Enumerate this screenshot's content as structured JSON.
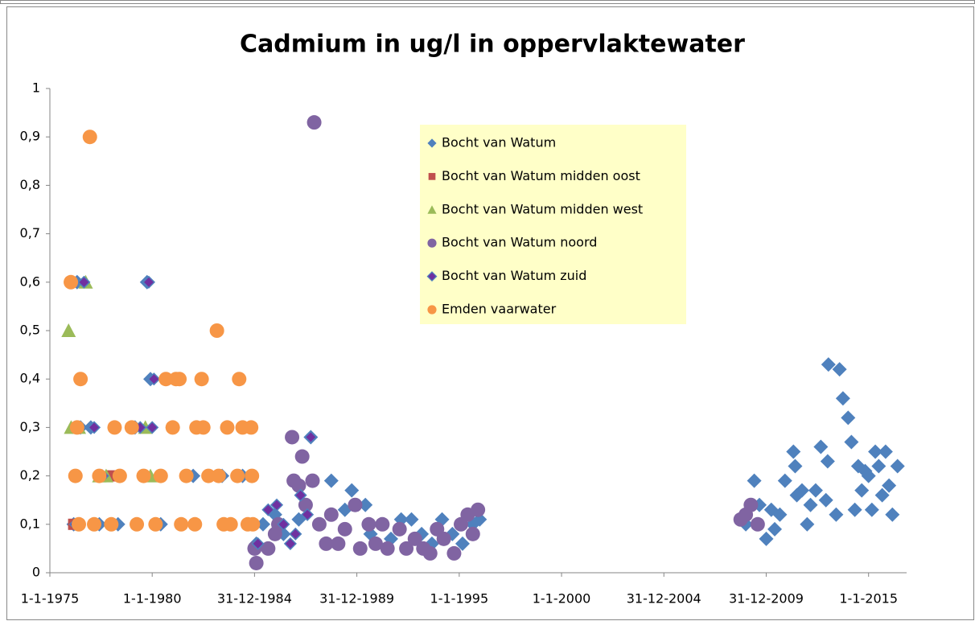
{
  "chart_data": {
    "type": "scatter",
    "title": "Cadmium in ug/l in oppervlaktewater",
    "xlim": [
      "1975-01-01",
      "2016-11-10"
    ],
    "xticks": [
      {
        "value": "1975-01-01",
        "label": "1-1-1975"
      },
      {
        "value": "1980-01-01",
        "label": "1-1-1980"
      },
      {
        "value": "1984-12-31",
        "label": "31-12-1984"
      },
      {
        "value": "1989-12-31",
        "label": "31-12-1989"
      },
      {
        "value": "1995-01-01",
        "label": "1-1-1995"
      },
      {
        "value": "2000-01-01",
        "label": "1-1-2000"
      },
      {
        "value": "2004-12-31",
        "label": "31-12-2004"
      },
      {
        "value": "2009-12-31",
        "label": "31-12-2009"
      },
      {
        "value": "2015-01-01",
        "label": "1-1-2015"
      }
    ],
    "ylim": [
      0,
      1
    ],
    "yticks": [
      0,
      {
        "value": 0.1,
        "label": "0,1"
      },
      {
        "value": 0.2,
        "label": "0,2"
      },
      {
        "value": 0.3,
        "label": "0,3"
      },
      {
        "value": 0.4,
        "label": "0,4"
      },
      {
        "value": 0.5,
        "label": "0,5"
      },
      {
        "value": 0.6,
        "label": "0,6"
      },
      {
        "value": 0.7,
        "label": "0,7"
      },
      {
        "value": 0.8,
        "label": "0,8"
      },
      {
        "value": 0.9,
        "label": "0,9"
      },
      1
    ],
    "grid": false,
    "legend": "upper center",
    "series": [
      {
        "name": "Bocht van Watum",
        "color": "#4f81bd",
        "marker": "diamond",
        "x": [
          "1976-03-01",
          "1976-05-01",
          "1976-07-01",
          "1977-01-01",
          "1977-06-01",
          "1978-05-01",
          "1979-03-01",
          "1979-10-01",
          "1979-12-01",
          "1980-06-01",
          "1981-01-01",
          "1982-01-01",
          "1983-06-01",
          "1984-06-01",
          "1985-02-01",
          "1985-06-01",
          "1986-01-01",
          "1986-06-01",
          "1987-03-01",
          "1987-10-01",
          "1988-10-01",
          "1989-06-01",
          "1989-10-01",
          "1990-06-01",
          "1990-09-01",
          "1991-03-01",
          "1991-09-01",
          "1992-03-01",
          "1992-09-01",
          "1993-03-01",
          "1993-09-01",
          "1994-03-01",
          "1994-09-01",
          "1995-03-01",
          "1995-09-01",
          "1996-01-01",
          "2009-01-01",
          "2009-06-01",
          "2009-09-01",
          "2010-01-01",
          "2010-04-01",
          "2010-06-01",
          "2010-09-01",
          "2010-12-01",
          "2011-05-01",
          "2011-06-01",
          "2011-07-01",
          "2011-10-01",
          "2012-01-01",
          "2012-03-01",
          "2012-06-01",
          "2012-09-01",
          "2012-12-01",
          "2013-01-01",
          "2013-01-15",
          "2013-06-01",
          "2013-08-01",
          "2013-10-01",
          "2014-01-01",
          "2014-03-01",
          "2014-05-01",
          "2014-07-01",
          "2014-09-01",
          "2014-11-01",
          "2015-01-01",
          "2015-03-01",
          "2015-05-01",
          "2015-07-01",
          "2015-09-01",
          "2015-11-01",
          "2016-01-01",
          "2016-03-01",
          "2016-06-01"
        ],
        "values": [
          0.1,
          0.6,
          0.3,
          0.3,
          0.1,
          0.1,
          0.3,
          0.6,
          0.4,
          0.1,
          0.3,
          0.2,
          0.2,
          0.2,
          0.06,
          0.1,
          0.12,
          0.08,
          0.11,
          0.28,
          0.19,
          0.13,
          0.17,
          0.14,
          0.08,
          0.1,
          0.07,
          0.11,
          0.11,
          0.08,
          0.06,
          0.11,
          0.08,
          0.06,
          0.1,
          0.11,
          0.1,
          0.19,
          0.14,
          0.07,
          0.13,
          0.09,
          0.12,
          0.19,
          0.25,
          0.22,
          0.16,
          0.17,
          0.1,
          0.14,
          0.17,
          0.26,
          0.15,
          0.23,
          0.43,
          0.12,
          0.42,
          0.36,
          0.32,
          0.27,
          0.13,
          0.22,
          0.17,
          0.21,
          0.2,
          0.13,
          0.25,
          0.22,
          0.16,
          0.25,
          0.18,
          0.12,
          0.22
        ]
      },
      {
        "name": "Bocht van Watum midden oost",
        "color": "#c0504d",
        "marker": "square",
        "x": [
          "1976-03-01",
          "1978-01-01"
        ],
        "values": [
          0.1,
          0.2
        ]
      },
      {
        "name": "Bocht van Watum midden west",
        "color": "#9bbb59",
        "marker": "triangle",
        "x": [
          "1975-12-01",
          "1976-01-15",
          "1976-06-01",
          "1976-10-01",
          "1977-06-01",
          "1977-10-01",
          "1979-09-01",
          "1979-12-01"
        ],
        "values": [
          0.5,
          0.3,
          0.3,
          0.6,
          0.2,
          0.2,
          0.3,
          0.2
        ]
      },
      {
        "name": "Bocht van Watum noord",
        "color": "#8064a2",
        "marker": "circle",
        "x": [
          "1985-01-01",
          "1985-02-01",
          "1985-09-01",
          "1986-01-01",
          "1986-03-01",
          "1986-11-01",
          "1986-12-01",
          "1987-03-01",
          "1987-05-01",
          "1987-07-01",
          "1987-11-01",
          "1987-12-01",
          "1988-03-01",
          "1988-07-01",
          "1988-10-01",
          "1989-02-01",
          "1989-06-01",
          "1989-12-01",
          "1990-03-01",
          "1990-08-01",
          "1990-12-01",
          "1991-04-01",
          "1991-07-01",
          "1992-02-01",
          "1992-06-01",
          "1992-11-01",
          "1993-04-01",
          "1993-08-01",
          "1993-12-01",
          "1994-04-01",
          "1994-10-01",
          "1995-02-01",
          "1995-06-01",
          "1995-09-01",
          "1995-12-01",
          "2008-10-01",
          "2009-01-01",
          "2009-04-01",
          "2009-08-01"
        ],
        "values": [
          0.05,
          0.02,
          0.05,
          0.08,
          0.1,
          0.28,
          0.19,
          0.18,
          0.24,
          0.14,
          0.19,
          0.93,
          0.1,
          0.06,
          0.12,
          0.06,
          0.09,
          0.14,
          0.05,
          0.1,
          0.06,
          0.1,
          0.05,
          0.09,
          0.05,
          0.07,
          0.05,
          0.04,
          0.09,
          0.07,
          0.04,
          0.1,
          0.12,
          0.08,
          0.13,
          0.11,
          0.12,
          0.14,
          0.1
        ]
      },
      {
        "name": "Bocht van Watum zuid",
        "color": "#7030a0",
        "marker": "smalldiamond",
        "x": [
          "1976-04-01",
          "1976-09-01",
          "1977-03-01",
          "1977-08-01",
          "1979-06-01",
          "1979-11-01",
          "1980-01-01",
          "1980-02-01",
          "1985-03-01",
          "1985-09-01",
          "1986-02-01",
          "1986-06-01",
          "1986-10-01",
          "1987-01-01",
          "1987-04-01",
          "1987-08-01",
          "1987-10-01"
        ],
        "values": [
          0.1,
          0.6,
          0.3,
          0.2,
          0.3,
          0.6,
          0.3,
          0.4,
          0.06,
          0.13,
          0.14,
          0.1,
          0.06,
          0.08,
          0.16,
          0.12,
          0.28
        ]
      },
      {
        "name": "Emden vaarwater",
        "color": "#f79646",
        "marker": "circle",
        "x": [
          "1976-01-10",
          "1976-12-15",
          "1976-07-01",
          "1976-05-01",
          "1976-04-01",
          "1976-06-01",
          "1977-03-01",
          "1977-06-01",
          "1978-01-01",
          "1978-03-01",
          "1978-06-01",
          "1979-01-01",
          "1979-04-01",
          "1979-08-01",
          "1980-03-01",
          "1980-06-01",
          "1980-09-01",
          "1981-01-01",
          "1981-03-01",
          "1981-05-01",
          "1981-06-01",
          "1981-09-01",
          "1982-02-01",
          "1982-03-01",
          "1982-06-01",
          "1982-07-01",
          "1982-10-01",
          "1983-03-01",
          "1983-04-01",
          "1983-07-01",
          "1983-09-01",
          "1983-11-01",
          "1984-03-01",
          "1984-04-01",
          "1984-06-01",
          "1984-09-01",
          "1984-11-01",
          "1984-11-15",
          "1984-12-01"
        ],
        "values": [
          0.6,
          0.9,
          0.4,
          0.3,
          0.2,
          0.1,
          0.1,
          0.2,
          0.1,
          0.3,
          0.2,
          0.3,
          0.1,
          0.2,
          0.1,
          0.2,
          0.4,
          0.3,
          0.4,
          0.4,
          0.1,
          0.2,
          0.1,
          0.3,
          0.4,
          0.3,
          0.2,
          0.5,
          0.2,
          0.1,
          0.3,
          0.1,
          0.2,
          0.4,
          0.3,
          0.1,
          0.3,
          0.2,
          0.1
        ]
      }
    ]
  }
}
